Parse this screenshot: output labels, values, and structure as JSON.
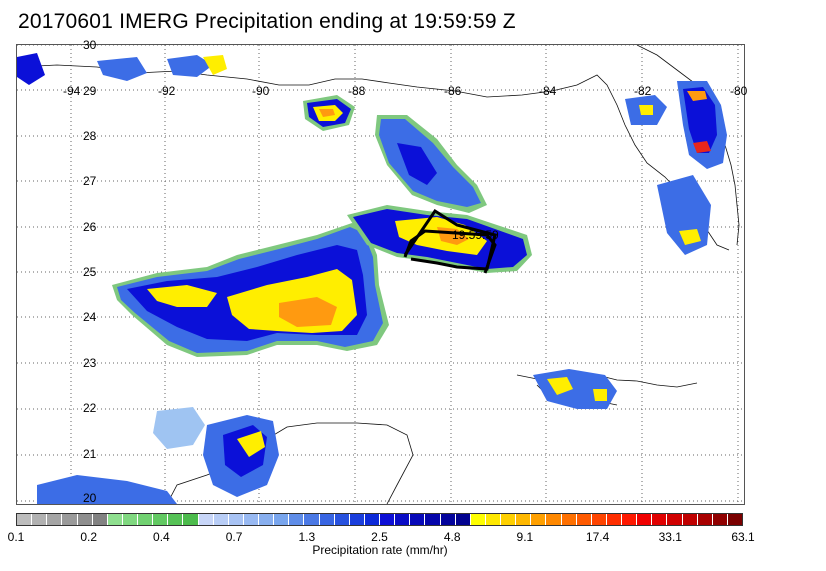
{
  "title": "20170601 IMERG Precipitation ending at 19:59:59 Z",
  "map": {
    "lon_labels": [
      "-94",
      "-92",
      "-90",
      "-88",
      "-86",
      "-84",
      "-82",
      "-80"
    ],
    "lat_labels": [
      "30",
      "29",
      "28",
      "27",
      "26",
      "25",
      "24",
      "23",
      "22",
      "21",
      "20"
    ],
    "storm_time_label": "19:59:59",
    "colors": {
      "light_blue": "#9fc4f2",
      "mid_blue": "#3c6de6",
      "deep_blue": "#0b10d8",
      "green_edge": "#7fc87f",
      "yellow": "#ffee00",
      "orange": "#ff9a10",
      "red": "#e8261a"
    }
  },
  "colorbar": {
    "label": "Precipitation rate (mm/hr)",
    "ticks": [
      "0.1",
      "0.2",
      "0.4",
      "0.7",
      "1.3",
      "2.5",
      "4.8",
      "9.1",
      "17.4",
      "33.1",
      "63.1"
    ],
    "colors": [
      "#bdbdbd",
      "#b1b1b1",
      "#a5a5a5",
      "#9a9a9a",
      "#8e8e8e",
      "#828282",
      "#8fdf8f",
      "#80d880",
      "#71d171",
      "#62c962",
      "#56c256",
      "#4cbb4c",
      "#c8d6f8",
      "#b8cdf6",
      "#a8c3f4",
      "#98b9f2",
      "#88afef",
      "#78a5ed",
      "#5f8de8",
      "#4b79e5",
      "#3865e2",
      "#2852df",
      "#1a3edc",
      "#0d2ad9",
      "#0d0fd6",
      "#0a0cc6",
      "#0708b8",
      "#0505aa",
      "#03039c",
      "#02028f",
      "#ffff00",
      "#ffe800",
      "#ffd000",
      "#ffb800",
      "#ffa000",
      "#ff8800",
      "#ff7000",
      "#ff5a00",
      "#ff4400",
      "#ff2e00",
      "#ff1800",
      "#f00000",
      "#e00000",
      "#d00000",
      "#c00000",
      "#a80000",
      "#900000",
      "#7a0000"
    ]
  }
}
